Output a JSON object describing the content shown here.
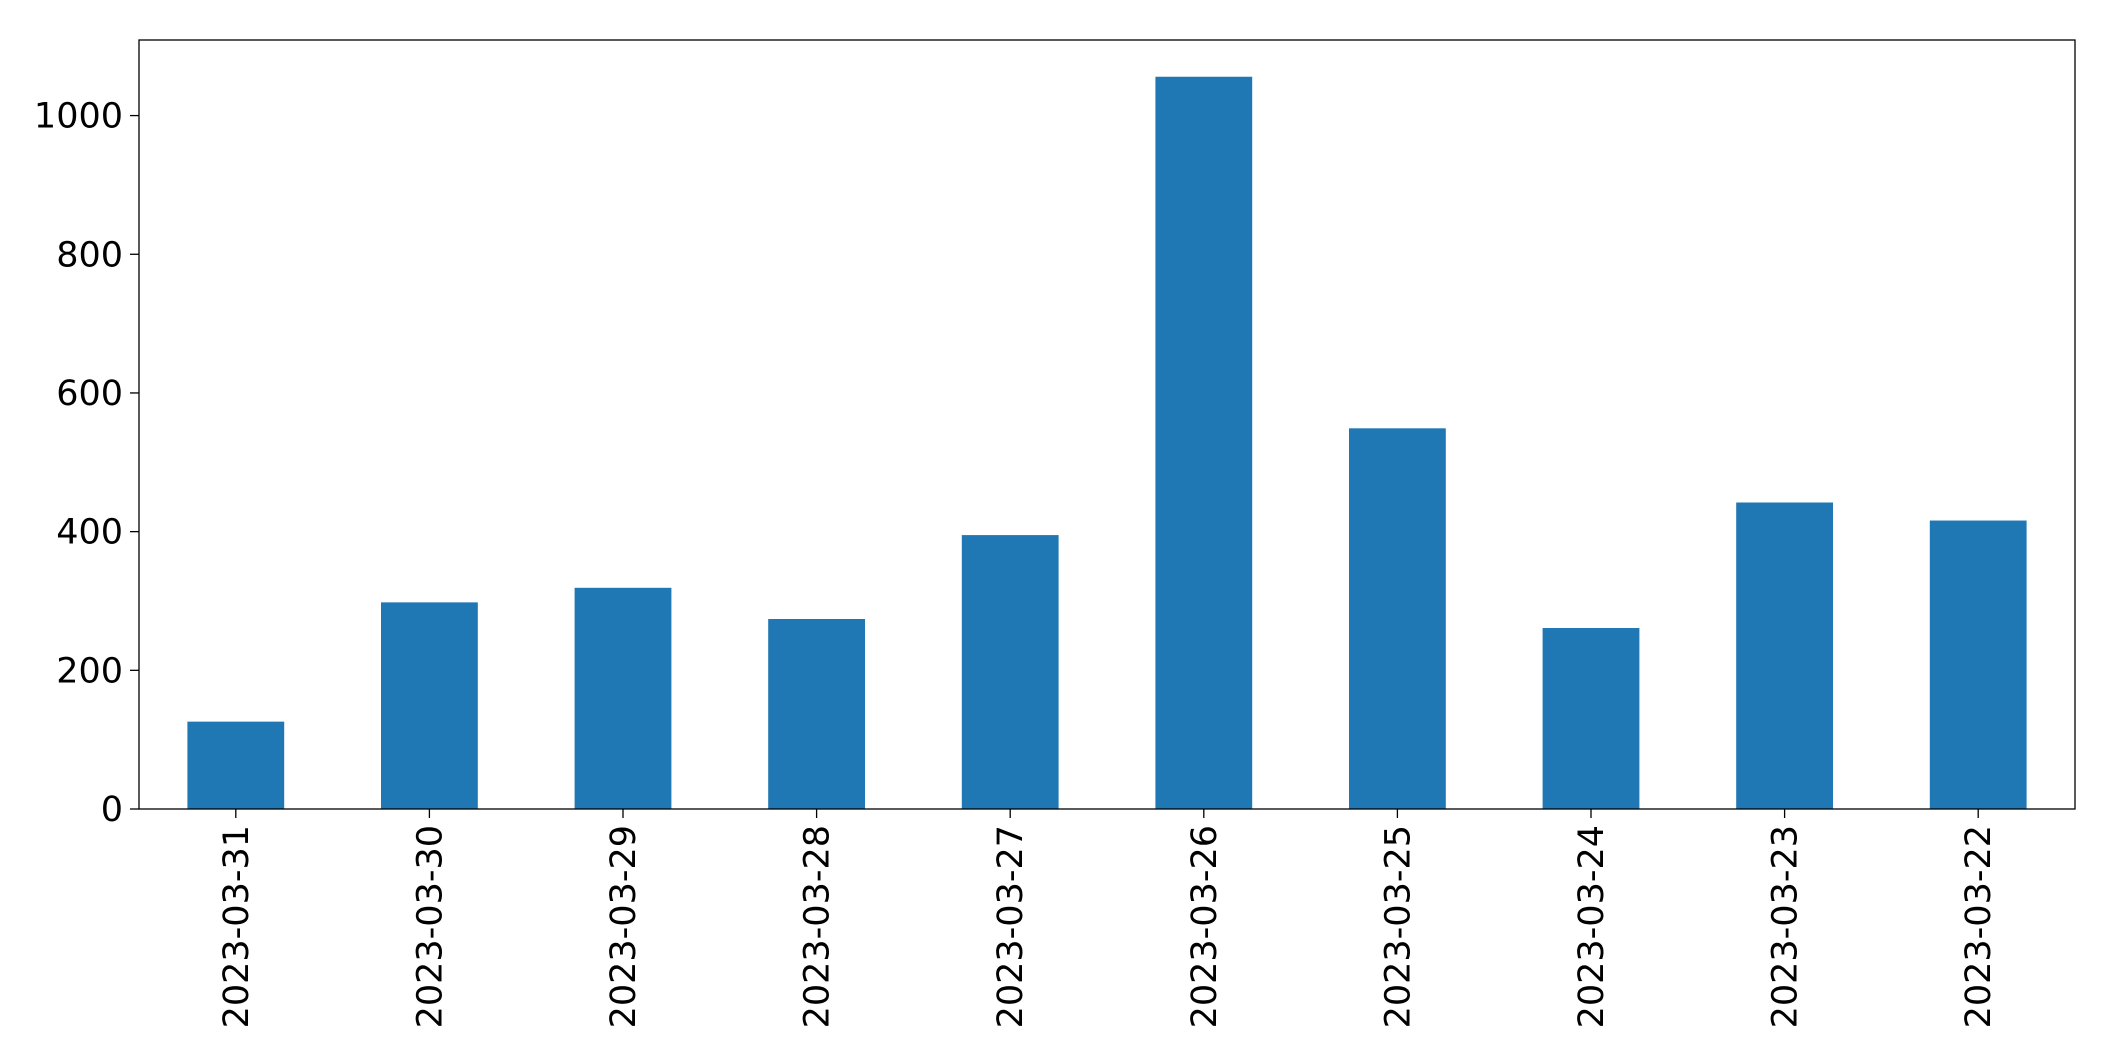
{
  "chart_data": {
    "type": "bar",
    "categories": [
      "2023-03-31",
      "2023-03-30",
      "2023-03-29",
      "2023-03-28",
      "2023-03-27",
      "2023-03-26",
      "2023-03-25",
      "2023-03-24",
      "2023-03-23",
      "2023-03-22"
    ],
    "values": [
      126,
      298,
      319,
      274,
      395,
      1056,
      549,
      261,
      442,
      416
    ],
    "color": "#1f77b4",
    "ylim": [
      0,
      1109
    ],
    "yticks": [
      0,
      200,
      400,
      600,
      800,
      1000
    ],
    "grid": false
  }
}
